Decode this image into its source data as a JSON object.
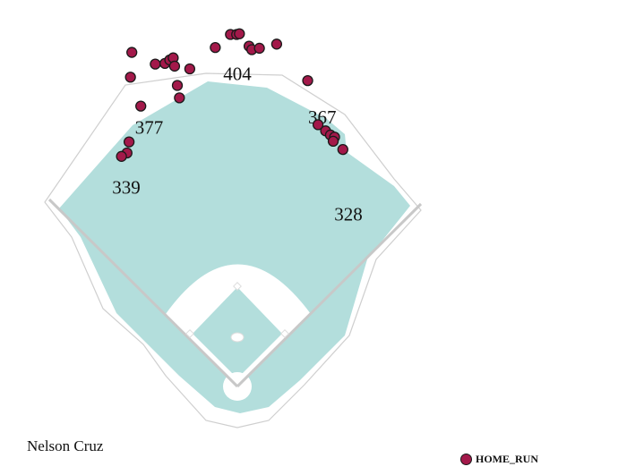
{
  "chart_data": {
    "type": "scatter",
    "title": "",
    "xlabel": "",
    "ylabel": "",
    "field_distances": [
      {
        "label": "339",
        "x": -161,
        "y": 280
      },
      {
        "label": "377",
        "x": -128,
        "y": 367
      },
      {
        "label": "404",
        "x": 0,
        "y": 445
      },
      {
        "label": "367",
        "x": 123,
        "y": 382
      },
      {
        "label": "328",
        "x": 161,
        "y": 241
      }
    ],
    "series": [
      {
        "name": "HOME_RUN",
        "color": "#a3194a",
        "points": [
          {
            "x": -153,
            "y": 485
          },
          {
            "x": -155,
            "y": 449
          },
          {
            "x": -119,
            "y": 468
          },
          {
            "x": -105,
            "y": 469
          },
          {
            "x": -98,
            "y": 474
          },
          {
            "x": -93,
            "y": 477
          },
          {
            "x": -91,
            "y": 465
          },
          {
            "x": -87,
            "y": 437
          },
          {
            "x": -140,
            "y": 407
          },
          {
            "x": -84,
            "y": 419
          },
          {
            "x": -69,
            "y": 461
          },
          {
            "x": -32,
            "y": 492
          },
          {
            "x": -10,
            "y": 511
          },
          {
            "x": -1,
            "y": 511
          },
          {
            "x": 3,
            "y": 512
          },
          {
            "x": 17,
            "y": 494
          },
          {
            "x": 21,
            "y": 489
          },
          {
            "x": 32,
            "y": 491
          },
          {
            "x": 57,
            "y": 497
          },
          {
            "x": 102,
            "y": 444
          },
          {
            "x": 117,
            "y": 380
          },
          {
            "x": 128,
            "y": 371
          },
          {
            "x": 135,
            "y": 365
          },
          {
            "x": 141,
            "y": 362
          },
          {
            "x": 139,
            "y": 356
          },
          {
            "x": 153,
            "y": 344
          },
          {
            "x": -160,
            "y": 339
          },
          {
            "x": -168,
            "y": 334
          },
          {
            "x": -157,
            "y": 355
          }
        ]
      }
    ]
  },
  "player_name": "Nelson Cruz",
  "legend": {
    "label": "HOME_RUN"
  }
}
